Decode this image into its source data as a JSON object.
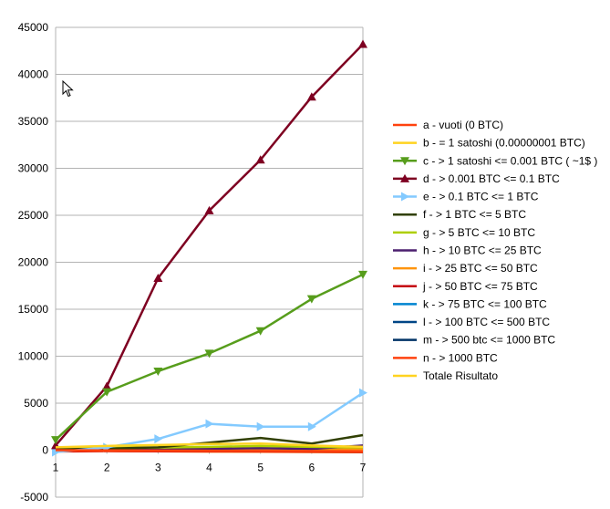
{
  "chart_data": {
    "type": "line",
    "categories": [
      1,
      2,
      3,
      4,
      5,
      6,
      7
    ],
    "ylim": [
      -5000,
      45000
    ],
    "yticks": [
      -5000,
      0,
      5000,
      10000,
      15000,
      20000,
      25000,
      30000,
      35000,
      40000,
      45000
    ],
    "grid": "horizontal",
    "legend_position": "right",
    "title": "",
    "xlabel": "",
    "ylabel": "",
    "series": [
      {
        "name": "a - vuoti (0 BTC)",
        "color": "#ff420e",
        "marker": "none",
        "values": [
          0,
          -20,
          -40,
          -60,
          -80,
          -100,
          -120
        ]
      },
      {
        "name": "b - = 1 satoshi (0.00000001 BTC)",
        "color": "#ffd320",
        "marker": "none",
        "values": [
          300,
          450,
          550,
          650,
          700,
          500,
          350
        ]
      },
      {
        "name": "c - > 1 satoshi <= 0.001 BTC ( ~1$ )",
        "color": "#579d1c",
        "marker": "triangle-down",
        "values": [
          1100,
          6200,
          8400,
          10300,
          12700,
          16100,
          18700
        ]
      },
      {
        "name": "d - > 0.001 BTC <= 0.1 BTC",
        "color": "#7e0021",
        "marker": "triangle-up",
        "values": [
          500,
          6800,
          18300,
          25500,
          30900,
          37600,
          43200
        ]
      },
      {
        "name": "e - > 0.1 BTC <= 1 BTC",
        "color": "#83caff",
        "marker": "triangle-right",
        "values": [
          -200,
          300,
          1200,
          2800,
          2500,
          2500,
          6100
        ]
      },
      {
        "name": "f - > 1 BTC <= 5 BTC",
        "color": "#314004",
        "marker": "none",
        "values": [
          100,
          150,
          300,
          800,
          1300,
          700,
          1600
        ]
      },
      {
        "name": "g - > 5 BTC <= 10 BTC",
        "color": "#aecf00",
        "marker": "none",
        "values": [
          200,
          250,
          280,
          350,
          450,
          350,
          300
        ]
      },
      {
        "name": "h - > 10 BTC <= 25 BTC",
        "color": "#4b1f6f",
        "marker": "none",
        "values": [
          0,
          60,
          120,
          160,
          220,
          130,
          500
        ]
      },
      {
        "name": "i - > 25 BTC <= 50 BTC",
        "color": "#ff950e",
        "marker": "none",
        "values": [
          0,
          30,
          60,
          80,
          100,
          60,
          80
        ]
      },
      {
        "name": "j - > 50 BTC <= 75 BTC",
        "color": "#c5000b",
        "marker": "none",
        "values": [
          -100,
          -60,
          -80,
          -100,
          -120,
          -150,
          -180
        ]
      },
      {
        "name": "k - > 75 BTC <= 100 BTC",
        "color": "#0084d1",
        "marker": "none",
        "values": [
          0,
          20,
          40,
          50,
          40,
          30,
          20
        ]
      },
      {
        "name": "l - > 100 BTC <= 500 BTC",
        "color": "#004586",
        "marker": "none",
        "values": [
          0,
          40,
          60,
          80,
          100,
          80,
          120
        ]
      },
      {
        "name": "m - > 500 btc <= 1000 BTC",
        "color": "#003366",
        "marker": "none",
        "values": [
          0,
          10,
          20,
          30,
          20,
          10,
          0
        ]
      },
      {
        "name": "n - > 1000 BTC",
        "color": "#ff420e",
        "marker": "none",
        "values": [
          -150,
          -100,
          -120,
          -140,
          -160,
          -180,
          -200
        ]
      },
      {
        "name": "Totale Risultato",
        "color": "#ffd320",
        "marker": "none",
        "values": [
          -100,
          -80,
          -120,
          -150,
          -170,
          -200,
          -220
        ]
      }
    ]
  }
}
